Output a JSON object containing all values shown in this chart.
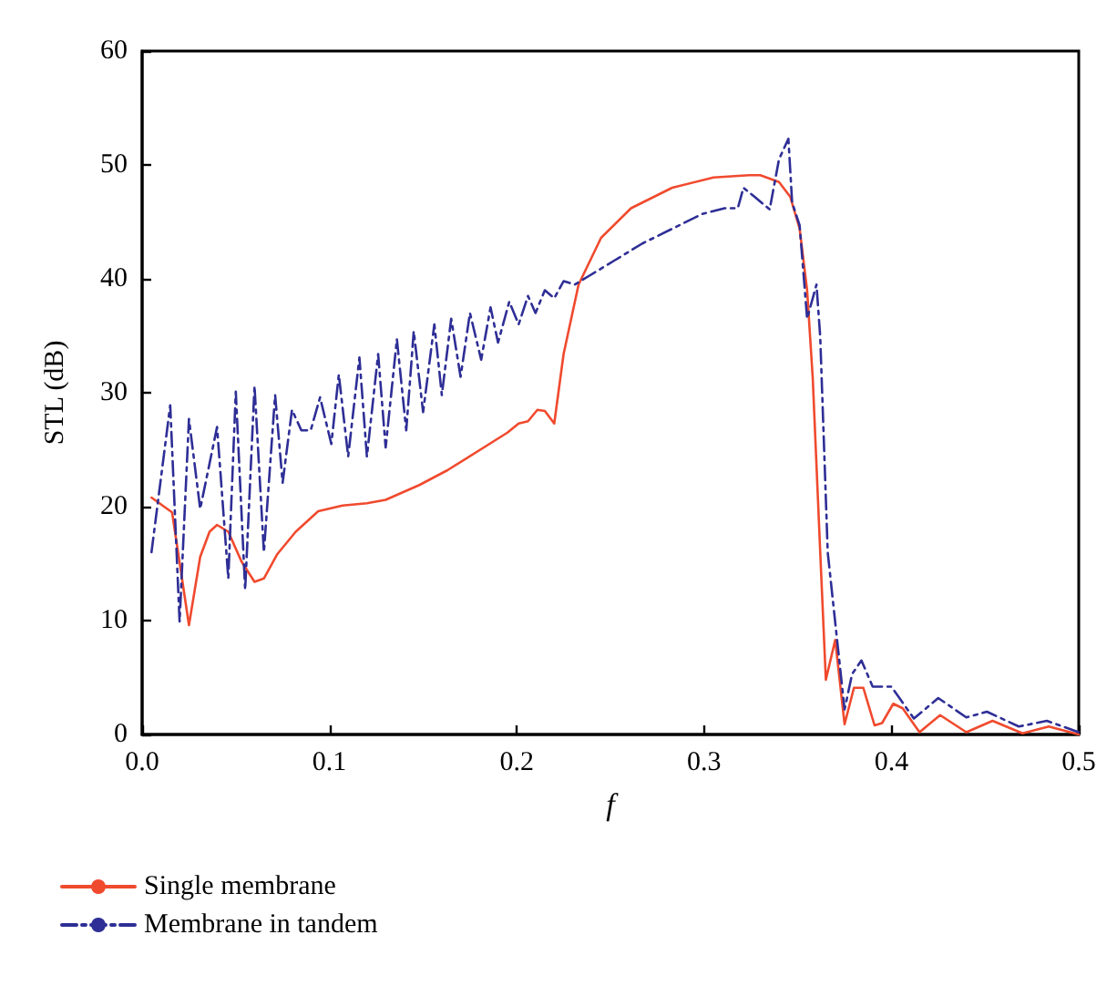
{
  "chart_data": {
    "type": "line",
    "xlabel": "f",
    "ylabel": "STL (dB)",
    "xlim": [
      0,
      0.5
    ],
    "xticks": [
      {
        "value": 0,
        "label": "0.0"
      },
      0.1,
      0.2,
      0.3,
      0.4,
      0.5
    ],
    "ylim": [
      0,
      60
    ],
    "yticks": [
      0,
      10,
      20,
      30,
      40,
      50,
      60
    ],
    "grid": false,
    "legend": "bottom left",
    "marker": "none",
    "series": [
      {
        "name": "Single membrane",
        "color": "#f04a2e",
        "line_style": "solid",
        "x": [
          0.005,
          0.016,
          0.025,
          0.031,
          0.036,
          0.04,
          0.046,
          0.053,
          0.06,
          0.065,
          0.072,
          0.082,
          0.094,
          0.107,
          0.12,
          0.13,
          0.148,
          0.163,
          0.195,
          0.201,
          0.206,
          0.211,
          0.215,
          0.22,
          0.225,
          0.233,
          0.245,
          0.261,
          0.283,
          0.305,
          0.324,
          0.33,
          0.34,
          0.346,
          0.351,
          0.355,
          0.358,
          0.362,
          0.365,
          0.37,
          0.375,
          0.38,
          0.385,
          0.391,
          0.395,
          0.401,
          0.406,
          0.415,
          0.426,
          0.44,
          0.454,
          0.47,
          0.484,
          0.5
        ],
        "values": [
          20.8,
          19.5,
          9.6,
          15.6,
          17.8,
          18.4,
          17.8,
          15.2,
          13.4,
          13.7,
          15.8,
          17.8,
          19.6,
          20.1,
          20.3,
          20.6,
          21.9,
          23.2,
          26.5,
          27.3,
          27.5,
          28.5,
          28.4,
          27.3,
          33.4,
          39.5,
          43.6,
          46.2,
          48.0,
          48.9,
          49.1,
          49.1,
          48.5,
          47.2,
          44.4,
          39.0,
          31.3,
          16.0,
          4.8,
          8.3,
          0.9,
          4.1,
          4.1,
          0.8,
          1.0,
          2.7,
          2.3,
          0.2,
          1.7,
          0.2,
          1.2,
          0.1,
          0.7,
          0
        ]
      },
      {
        "name": "Membrane in tandem",
        "color": "#2e2e96",
        "line_style": "dashdot",
        "x": [
          0.005,
          0.015,
          0.02,
          0.025,
          0.031,
          0.04,
          0.046,
          0.05,
          0.055,
          0.06,
          0.065,
          0.071,
          0.075,
          0.08,
          0.085,
          0.09,
          0.095,
          0.101,
          0.105,
          0.11,
          0.116,
          0.12,
          0.126,
          0.13,
          0.136,
          0.141,
          0.145,
          0.15,
          0.156,
          0.16,
          0.165,
          0.17,
          0.175,
          0.181,
          0.186,
          0.19,
          0.196,
          0.201,
          0.206,
          0.21,
          0.215,
          0.22,
          0.225,
          0.231,
          0.239,
          0.252,
          0.267,
          0.283,
          0.299,
          0.311,
          0.318,
          0.321,
          0.327,
          0.335,
          0.34,
          0.345,
          0.347,
          0.351,
          0.355,
          0.36,
          0.362,
          0.366,
          0.371,
          0.375,
          0.379,
          0.384,
          0.39,
          0.4,
          0.412,
          0.425,
          0.44,
          0.451,
          0.468,
          0.483,
          0.5
        ],
        "values": [
          16.0,
          28.9,
          9.9,
          27.7,
          19.8,
          27.0,
          13.7,
          30.1,
          12.7,
          30.6,
          16.0,
          29.8,
          22.1,
          28.5,
          26.7,
          26.7,
          29.6,
          25.5,
          31.6,
          24.4,
          33.1,
          24.4,
          33.4,
          25.2,
          34.7,
          26.7,
          35.4,
          28.3,
          36.0,
          29.8,
          36.5,
          31.4,
          37.0,
          32.9,
          37.5,
          34.4,
          38.0,
          36.0,
          38.5,
          37.0,
          39.0,
          38.3,
          39.8,
          39.5,
          40.3,
          41.6,
          43.1,
          44.4,
          45.7,
          46.2,
          46.2,
          48.0,
          47.2,
          46.1,
          50.5,
          52.3,
          46.7,
          44.7,
          36.5,
          39.5,
          34.9,
          16.0,
          8.3,
          2.2,
          5.3,
          6.5,
          4.2,
          4.2,
          1.4,
          3.2,
          1.5,
          2.0,
          0.7,
          1.2,
          0.2
        ]
      }
    ]
  }
}
